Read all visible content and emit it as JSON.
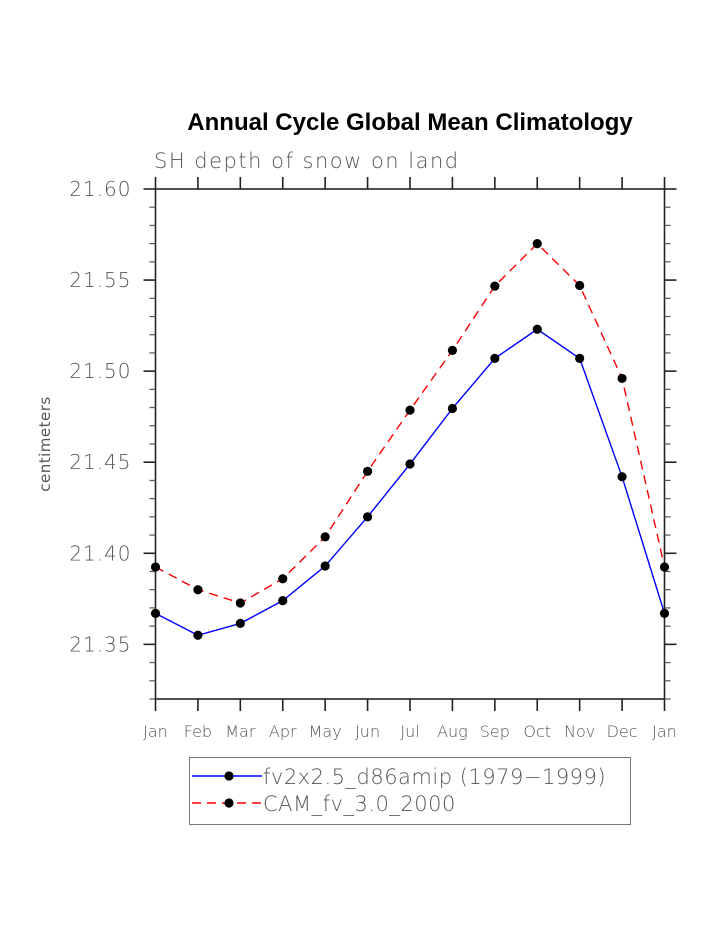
{
  "chart_data": {
    "type": "line",
    "title": "Annual Cycle Global Mean Climatology",
    "subtitle": "SH depth of snow on land",
    "xlabel": "",
    "ylabel": "centimeters",
    "categories": [
      "Jan",
      "Feb",
      "Mar",
      "Apr",
      "May",
      "Jun",
      "Jul",
      "Aug",
      "Sep",
      "Oct",
      "Nov",
      "Dec",
      "Jan"
    ],
    "ylim": [
      21.32,
      21.6
    ],
    "yticks": [
      21.35,
      21.4,
      21.45,
      21.5,
      21.55,
      21.6
    ],
    "ytick_labels": [
      "21.35",
      "21.40",
      "21.45",
      "21.50",
      "21.55",
      "21.60"
    ],
    "yminor_step": 0.01,
    "grid": false,
    "legend_position": "bottom",
    "series": [
      {
        "name": "fv2x2.5_d86amip (1979-1999)",
        "label": "fv2x2.5_d86amip (1979−1999)",
        "color": "#0000ff",
        "dash": "solid",
        "marker": "filled-circle",
        "values": [
          21.367,
          21.355,
          21.3615,
          21.374,
          21.393,
          21.42,
          21.449,
          21.4795,
          21.507,
          21.523,
          21.507,
          21.442,
          21.367
        ]
      },
      {
        "name": "CAM_fv_3.0_2000",
        "label": "CAM_fv_3.0_2000",
        "color": "#ff0000",
        "dash": "dashed",
        "marker": "filled-circle",
        "values": [
          21.3925,
          21.38,
          21.3727,
          21.386,
          21.409,
          21.445,
          21.4786,
          21.5114,
          21.5467,
          21.57,
          21.547,
          21.496,
          21.3925
        ]
      }
    ]
  }
}
